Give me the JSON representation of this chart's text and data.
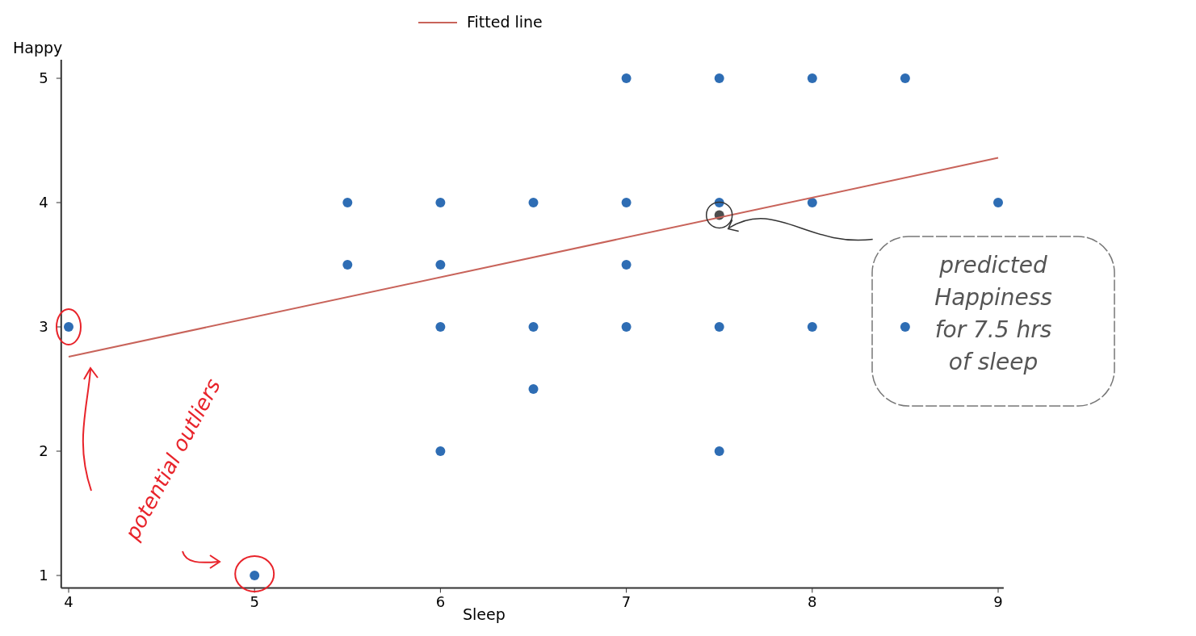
{
  "chart_data": {
    "type": "scatter",
    "xlabel": "Sleep",
    "ylabel": "Happy",
    "xlim": [
      3.96,
      9.03
    ],
    "ylim": [
      0.9,
      5.15
    ],
    "xticks": [
      4,
      5,
      6,
      7,
      8,
      9
    ],
    "yticks": [
      1,
      2,
      3,
      4,
      5
    ],
    "grid": false,
    "legend": "top",
    "marker": "circle",
    "series": [
      {
        "color": "#2e6db4",
        "x": [
          4,
          5,
          5.5,
          5.5,
          6,
          6,
          6,
          6,
          6.5,
          6.5,
          6.5,
          7,
          7,
          7,
          7,
          7.5,
          7.5,
          7.5,
          7.5,
          8,
          8,
          8,
          8.5,
          8.5,
          9
        ],
        "values": [
          3,
          1,
          4,
          3.5,
          4,
          3.5,
          3,
          2,
          4,
          3,
          2.5,
          5,
          4,
          3.5,
          3,
          5,
          4,
          3,
          2,
          5,
          4,
          3,
          5,
          3,
          4
        ]
      },
      {
        "color": "#4d4d4d",
        "x": [
          7.5
        ],
        "values": [
          3.9
        ]
      },
      {
        "type": "line",
        "marker": "none",
        "name": "Fitted line",
        "color": "#c8635a",
        "x": [
          4,
          9
        ],
        "values": [
          2.76,
          4.36
        ]
      }
    ],
    "annotations": [
      "potential outliers",
      "predicted Happiness for 7.5 hrs of sleep"
    ]
  }
}
